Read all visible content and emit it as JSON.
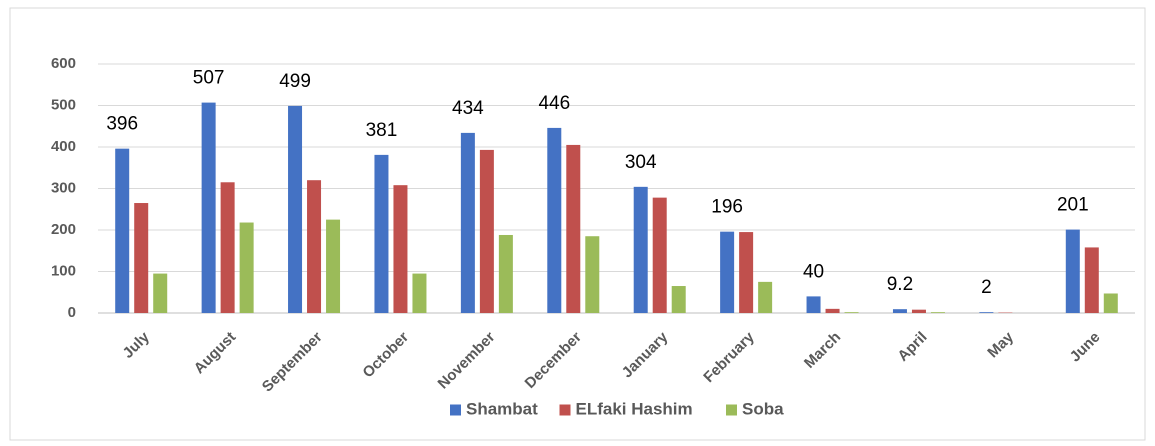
{
  "chart_data": {
    "type": "bar",
    "categories": [
      "July",
      "August",
      "September",
      "October",
      "November",
      "December",
      "January",
      "February",
      "March",
      "April",
      "May",
      "June"
    ],
    "series": [
      {
        "name": "Shambat",
        "color": "#4472c4",
        "data_labels": true,
        "values": [
          396,
          507,
          499,
          381,
          434,
          446,
          304,
          196,
          40,
          9.2,
          2,
          201
        ]
      },
      {
        "name": "ELfaki Hashim",
        "color": "#c0504d",
        "data_labels": false,
        "values": [
          265,
          315,
          320,
          308,
          393,
          405,
          278,
          195,
          10,
          8,
          1,
          158
        ]
      },
      {
        "name": "Soba",
        "color": "#9bbb59",
        "data_labels": false,
        "values": [
          95,
          218,
          225,
          95,
          188,
          185,
          65,
          75,
          2,
          2,
          0,
          47
        ]
      }
    ],
    "ylim": [
      0,
      600
    ],
    "yticks": [
      0,
      100,
      200,
      300,
      400,
      500,
      600
    ],
    "grid": true,
    "legend": "bottom"
  }
}
